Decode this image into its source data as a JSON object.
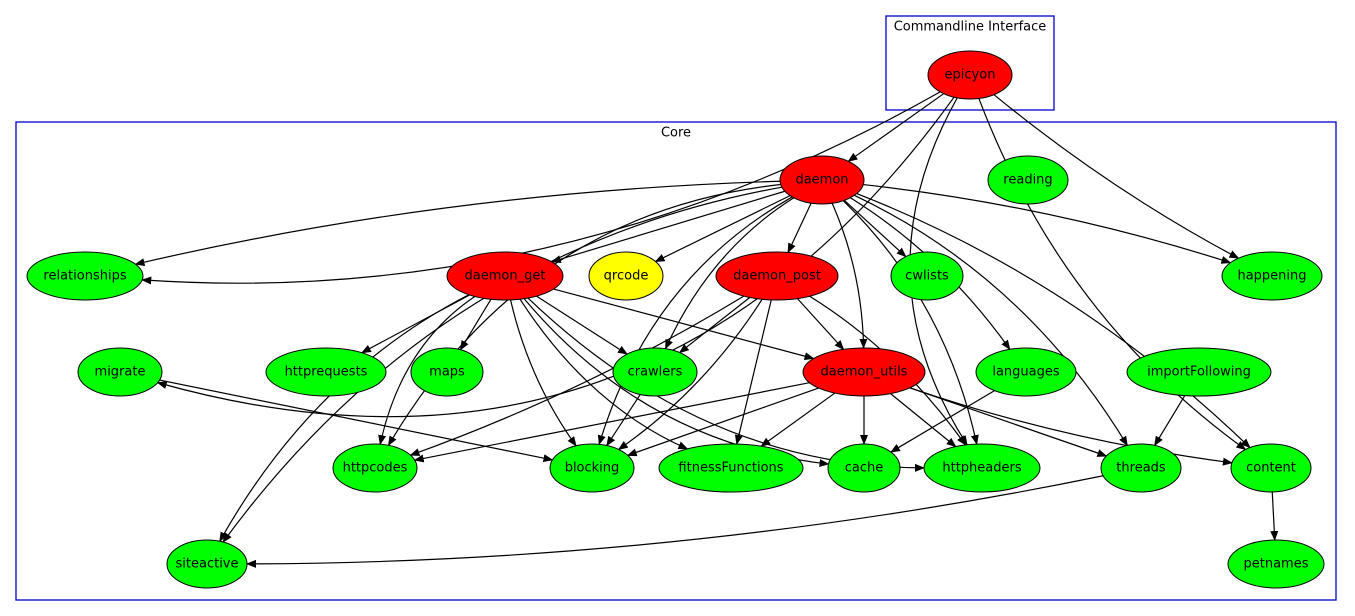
{
  "clusters": [
    {
      "label": "Commandline Interface"
    },
    {
      "label": "Core"
    }
  ],
  "nodes": [
    {
      "label": "epicyon"
    },
    {
      "label": "daemon"
    },
    {
      "label": "reading"
    },
    {
      "label": "relationships"
    },
    {
      "label": "daemon_get"
    },
    {
      "label": "qrcode"
    },
    {
      "label": "daemon_post"
    },
    {
      "label": "cwlists"
    },
    {
      "label": "happening"
    },
    {
      "label": "migrate"
    },
    {
      "label": "httprequests"
    },
    {
      "label": "maps"
    },
    {
      "label": "crawlers"
    },
    {
      "label": "daemon_utils"
    },
    {
      "label": "languages"
    },
    {
      "label": "importFollowing"
    },
    {
      "label": "httpcodes"
    },
    {
      "label": "blocking"
    },
    {
      "label": "fitnessFunctions"
    },
    {
      "label": "cache"
    },
    {
      "label": "httpheaders"
    },
    {
      "label": "threads"
    },
    {
      "label": "content"
    },
    {
      "label": "siteactive"
    },
    {
      "label": "petnames"
    }
  ]
}
